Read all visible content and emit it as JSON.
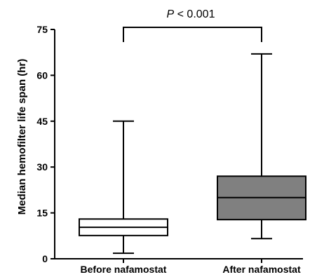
{
  "chart_data": {
    "type": "box",
    "categories": [
      "Before nafamostat",
      "After nafamostat"
    ],
    "boxes": [
      {
        "category": "Before nafamostat",
        "min": 1.8,
        "q1": 7.6,
        "median": 10.3,
        "q3": 13.0,
        "max": 45.0,
        "fill": "#ffffff"
      },
      {
        "category": "After nafamostat",
        "min": 6.6,
        "q1": 12.8,
        "median": 20.0,
        "q3": 27.0,
        "max": 67.0,
        "fill": "#808080"
      }
    ],
    "ylabel": "Median hemofilter life span (hr)",
    "xlabel": "",
    "title": "",
    "ylim": [
      0,
      75
    ],
    "yticks": [
      0,
      15,
      30,
      45,
      60,
      75
    ],
    "grid": false,
    "annotation": {
      "italic": "P",
      "rest": " < 0.001"
    }
  }
}
